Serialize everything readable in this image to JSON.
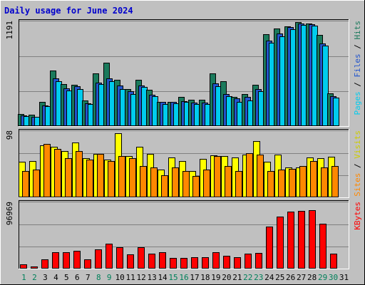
{
  "chart_data": {
    "type": "bar",
    "title": "Daily usage for June 2024",
    "categories": [
      "1",
      "2",
      "3",
      "4",
      "5",
      "6",
      "7",
      "8",
      "9",
      "10",
      "11",
      "12",
      "13",
      "14",
      "15",
      "16",
      "17",
      "18",
      "19",
      "20",
      "21",
      "22",
      "23",
      "24",
      "25",
      "26",
      "27",
      "28",
      "29",
      "30",
      "31"
    ],
    "weekend_days": [
      "1",
      "2",
      "8",
      "9",
      "15",
      "16",
      "22",
      "23",
      "29",
      "30"
    ],
    "panels": [
      {
        "id": "hits",
        "ymax_label": "1191",
        "ylim": [
          0,
          1191
        ],
        "side_label_parts": [
          "Pages",
          " / ",
          "Files",
          " / ",
          "Hits"
        ],
        "series": [
          {
            "name": "Hits",
            "color": "#1b7a5c",
            "values": [
              130,
              125,
              270,
              620,
              470,
              465,
              285,
              590,
              710,
              520,
              415,
              515,
              405,
              270,
              270,
              325,
              295,
              290,
              590,
              505,
              325,
              355,
              465,
              1040,
              1100,
              1130,
              1175,
              1160,
              1025,
              365,
              0
            ]
          },
          {
            "name": "Files",
            "color": "#2255cc",
            "values": [
              110,
              100,
              225,
              535,
              425,
              445,
              255,
              485,
              535,
              450,
              390,
              455,
              350,
              265,
              265,
              275,
              260,
              260,
              475,
              360,
              305,
              325,
              415,
              965,
              1045,
              1120,
              1160,
              1150,
              935,
              335,
              0
            ]
          },
          {
            "name": "Pages",
            "color": "#00ccee",
            "values": [
              105,
              95,
              215,
              505,
              395,
              415,
              245,
              470,
              505,
              415,
              360,
              435,
              335,
              245,
              250,
              265,
              245,
              245,
              445,
              335,
              265,
              285,
              385,
              940,
              1010,
              1090,
              1140,
              1135,
              905,
              315,
              0
            ]
          }
        ]
      },
      {
        "id": "visits",
        "ymax_label": "98",
        "ylim": [
          0,
          98
        ],
        "side_label_parts": [
          "Sites",
          " / ",
          "Visits"
        ],
        "series": [
          {
            "name": "Visits",
            "color": "#ffff00",
            "values": [
              52,
              53,
              76,
              74,
              67,
              80,
              57,
              63,
              55,
              94,
              60,
              74,
              63,
              40,
              58,
              53,
              38,
              56,
              61,
              60,
              58,
              62,
              82,
              52,
              62,
              43,
              43,
              58,
              57,
              59,
              0
            ]
          },
          {
            "name": "Sites",
            "color": "#ff8800",
            "values": [
              38,
              40,
              78,
              71,
              57,
              67,
              55,
              63,
              53,
              60,
              57,
              45,
              43,
              32,
              43,
              38,
              31,
              40,
              60,
              45,
              38,
              64,
              62,
              38,
              40,
              41,
              45,
              53,
              43,
              45,
              0
            ]
          }
        ]
      },
      {
        "id": "kbytes",
        "ymax_label": "96969",
        "ylim": [
          0,
          96969
        ],
        "side_label_parts": [
          "KBytes"
        ],
        "series": [
          {
            "name": "KBytes",
            "color": "#ff0000",
            "values": [
              5000,
              2500,
              12500,
              23000,
              23000,
              25000,
              13000,
              27500,
              35000,
              30000,
              20000,
              30000,
              21000,
              23000,
              15000,
              15000,
              16000,
              15500,
              23000,
              18000,
              16000,
              21000,
              22000,
              60000,
              75000,
              82000,
              83500,
              84500,
              65000,
              21000,
              0
            ]
          }
        ]
      }
    ]
  }
}
